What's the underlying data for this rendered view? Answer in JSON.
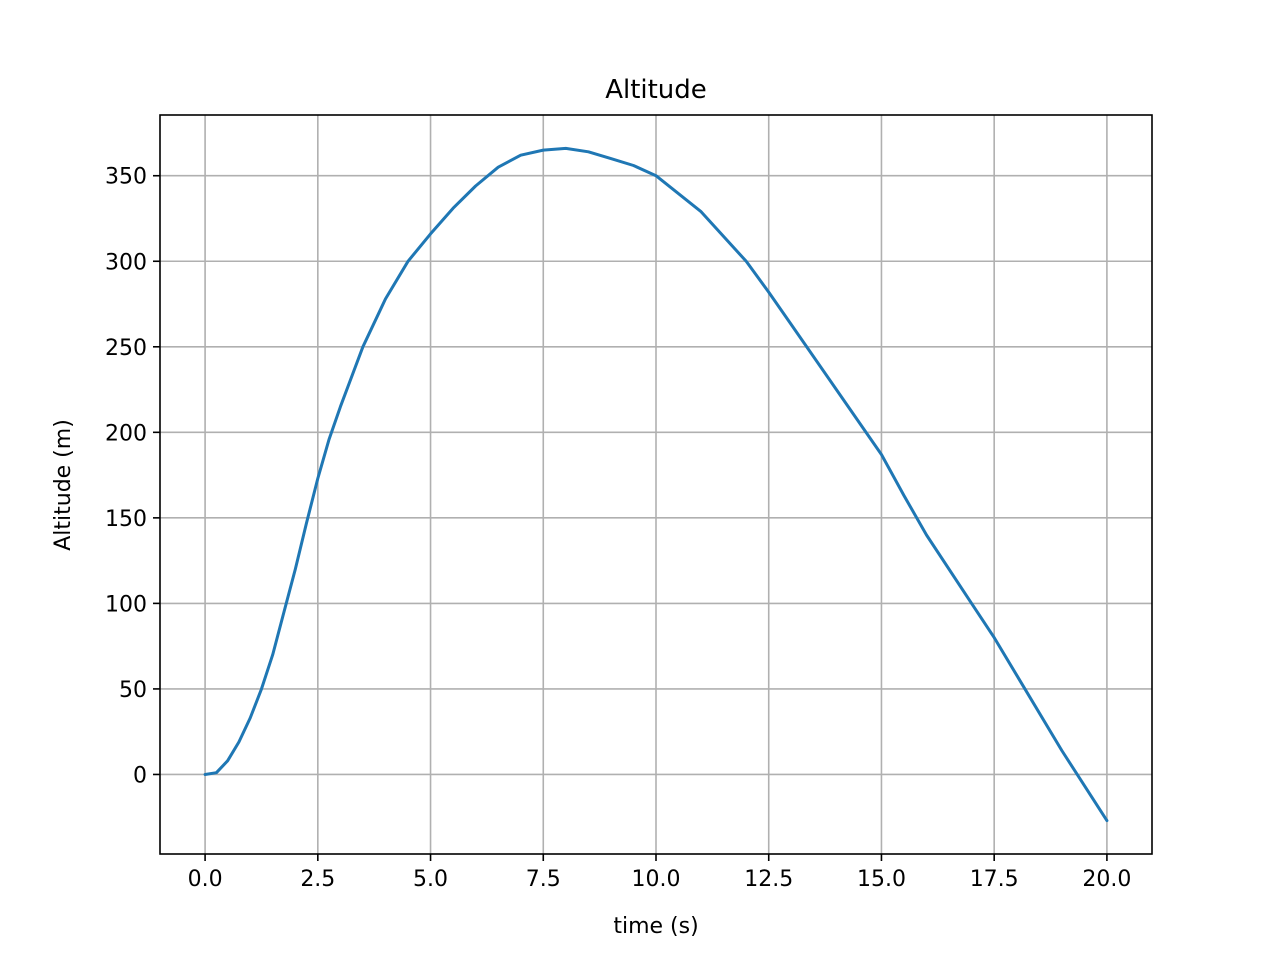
{
  "chart_data": {
    "type": "line",
    "title": "Altitude",
    "xlabel": "time (s)",
    "ylabel": "Altitude (m)",
    "xlim": [
      -1.0,
      21.0
    ],
    "ylim": [
      -46.5,
      385.5
    ],
    "grid": true,
    "x_ticks": [
      0.0,
      2.5,
      5.0,
      7.5,
      10.0,
      12.5,
      15.0,
      17.5,
      20.0
    ],
    "x_tick_labels": [
      "0.0",
      "2.5",
      "5.0",
      "7.5",
      "10.0",
      "12.5",
      "15.0",
      "17.5",
      "20.0"
    ],
    "y_ticks": [
      0,
      50,
      100,
      150,
      200,
      250,
      300,
      350
    ],
    "y_tick_labels": [
      "0",
      "50",
      "100",
      "150",
      "200",
      "250",
      "300",
      "350"
    ],
    "series": [
      {
        "color": "#1f77b4",
        "x": [
          0.0,
          0.25,
          0.5,
          0.75,
          1.0,
          1.25,
          1.5,
          1.75,
          2.0,
          2.25,
          2.5,
          2.75,
          3.0,
          3.5,
          4.0,
          4.5,
          5.0,
          5.5,
          6.0,
          6.5,
          7.0,
          7.5,
          8.0,
          8.5,
          9.0,
          9.5,
          10.0,
          11.0,
          12.0,
          12.5,
          13.0,
          14.0,
          15.0,
          15.5,
          16.0,
          17.0,
          17.5,
          18.0,
          19.0,
          20.0
        ],
        "y": [
          0,
          1,
          8,
          19,
          33,
          50,
          70,
          95,
          120,
          147,
          173,
          196,
          215,
          250,
          278,
          300,
          316,
          331,
          344,
          355,
          362,
          365,
          366,
          364,
          360,
          356,
          350,
          329,
          300,
          282,
          263,
          225,
          187,
          163,
          140,
          100,
          80,
          58,
          14,
          -27
        ]
      }
    ]
  }
}
